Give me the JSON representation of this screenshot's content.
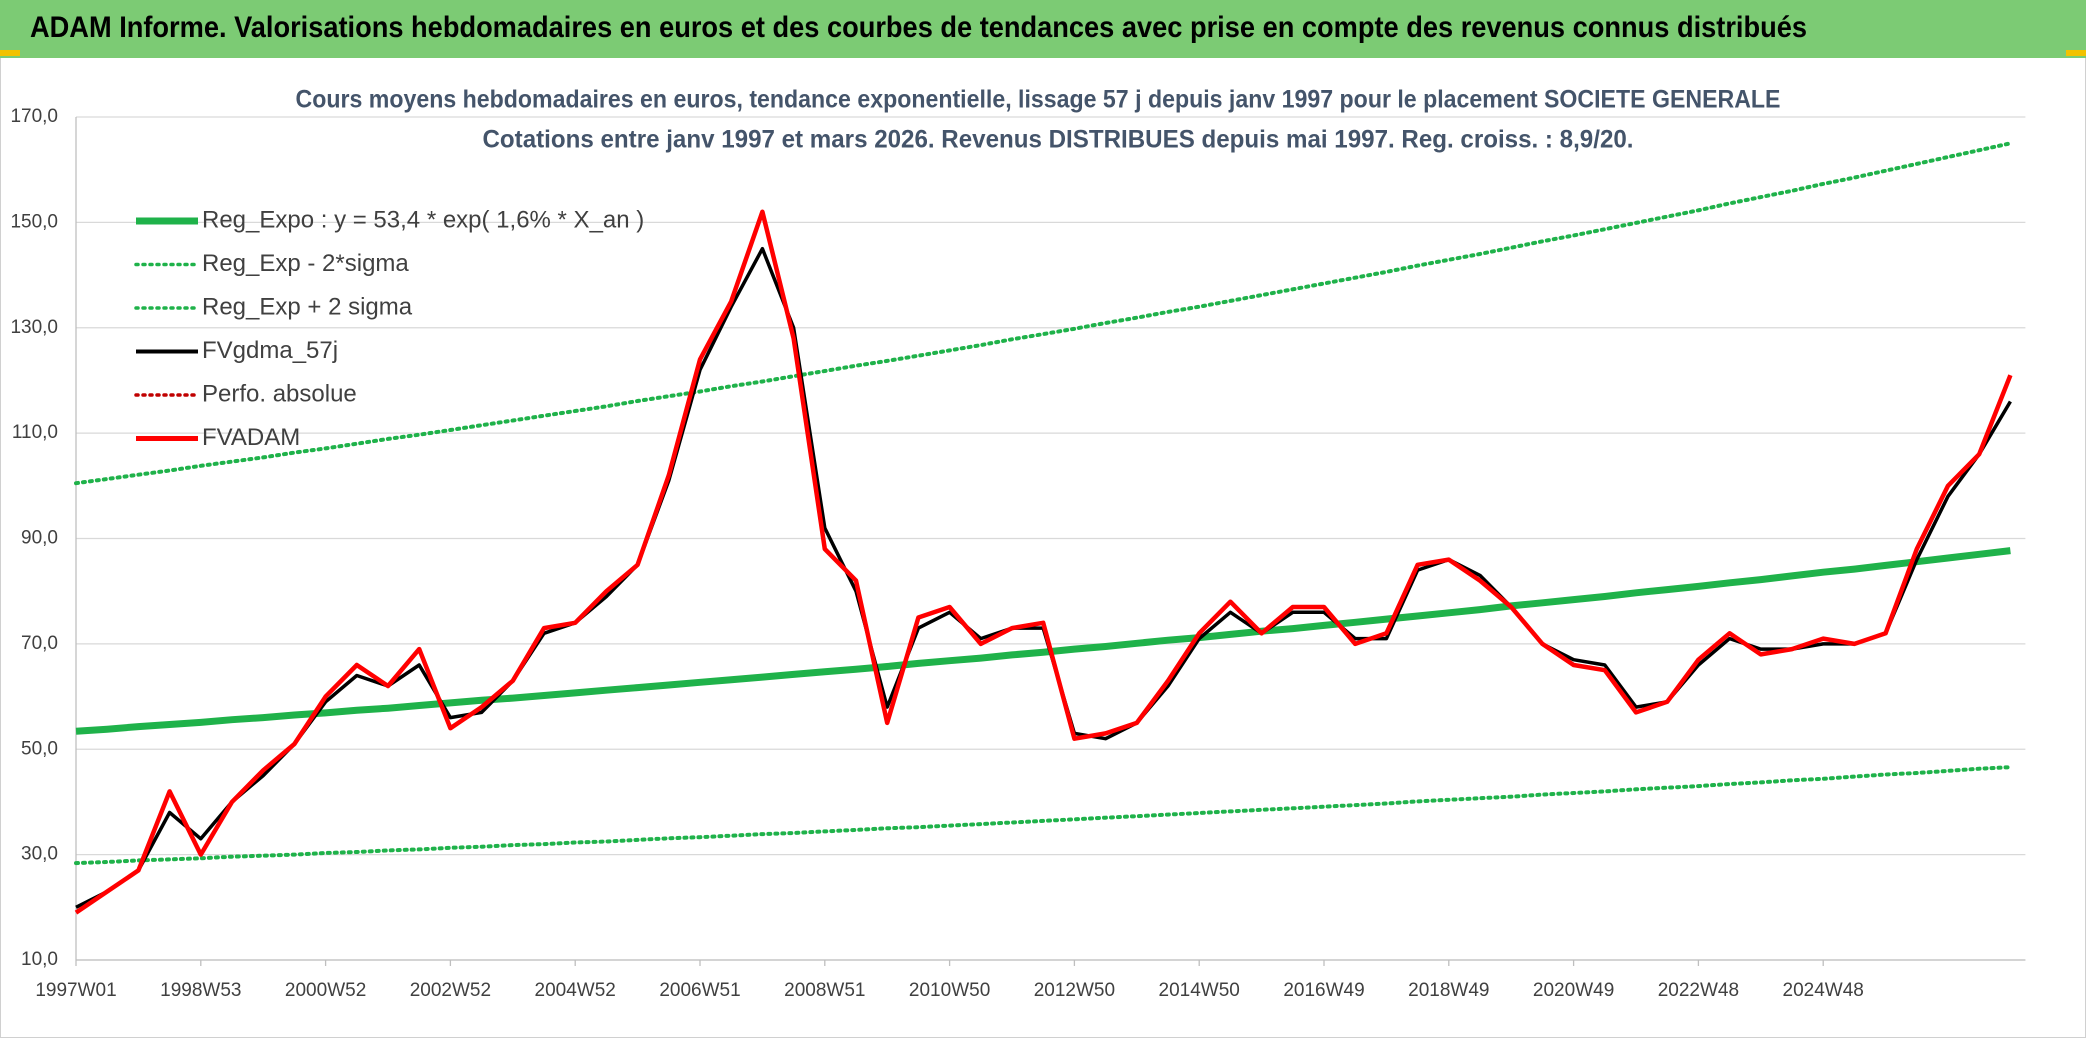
{
  "header": {
    "title": "ADAM Informe. Valorisations hebdomadaires en euros et des courbes de tendances avec prise en compte des revenus connus distribués"
  },
  "chart_data": {
    "type": "line",
    "title": "Cours moyens hebdomadaires en euros, tendance exponentielle, lissage 57 j depuis janv 1997 pour le placement SOCIETE GENERALE",
    "subtitle": "Cotations entre janv 1997 et mars 2026. Revenus DISTRIBUES depuis mai 1997. Reg. croiss. : 8,9/20.",
    "categories": [
      "1997W01",
      null,
      null,
      null,
      "1998W53",
      null,
      null,
      null,
      "2000W52",
      null,
      null,
      null,
      "2002W52",
      null,
      null,
      null,
      "2004W52",
      null,
      null,
      null,
      "2006W51",
      null,
      null,
      null,
      "2008W51",
      null,
      null,
      null,
      "2010W50",
      null,
      null,
      null,
      "2012W50",
      null,
      null,
      null,
      "2014W50",
      null,
      null,
      null,
      "2016W49",
      null,
      null,
      null,
      "2018W49",
      null,
      null,
      null,
      "2020W49",
      null,
      null,
      null,
      "2022W48",
      null,
      null,
      null,
      "2024W48",
      null,
      null,
      null,
      null,
      null,
      null
    ],
    "ylim": [
      10,
      170
    ],
    "yticks": [
      {
        "value": 10,
        "label": "10,0"
      },
      {
        "value": 30,
        "label": "30,0"
      },
      {
        "value": 50,
        "label": "50,0"
      },
      {
        "value": 70,
        "label": "70,0"
      },
      {
        "value": 90,
        "label": "90,0"
      },
      {
        "value": 110,
        "label": "110,0"
      },
      {
        "value": 130,
        "label": "130,0"
      },
      {
        "value": 150,
        "label": "150,0"
      },
      {
        "value": 170,
        "label": "170,0"
      }
    ],
    "grid": true,
    "legend": "upper left",
    "series": [
      {
        "name": "Reg_Expo : y = 53,4 * exp( 1,6% *  X_an )",
        "color": "#1fb24a",
        "dotted": false,
        "bold": true,
        "values": [
          53.4,
          53.8,
          54.3,
          54.7,
          55.1,
          55.6,
          56.0,
          56.5,
          56.9,
          57.4,
          57.8,
          58.3,
          58.8,
          59.3,
          59.7,
          60.2,
          60.7,
          61.2,
          61.7,
          62.2,
          62.7,
          63.2,
          63.7,
          64.2,
          64.7,
          65.2,
          65.7,
          66.3,
          66.8,
          67.3,
          67.9,
          68.4,
          69.0,
          69.5,
          70.1,
          70.7,
          71.2,
          71.8,
          72.4,
          72.9,
          73.5,
          74.1,
          74.7,
          75.3,
          75.9,
          76.5,
          77.2,
          77.8,
          78.4,
          79.0,
          79.7,
          80.3,
          80.9,
          81.6,
          82.2,
          82.9,
          83.6,
          84.2,
          84.9,
          85.6,
          86.3,
          87.0,
          87.7
        ]
      },
      {
        "name": "Reg_Exp - 2*sigma",
        "color": "#1fb24a",
        "dotted": true,
        "bold": false,
        "values": [
          28.4,
          28.6,
          28.9,
          29.1,
          29.3,
          29.6,
          29.8,
          30.0,
          30.3,
          30.5,
          30.8,
          31.0,
          31.3,
          31.5,
          31.8,
          32.0,
          32.3,
          32.5,
          32.8,
          33.1,
          33.3,
          33.6,
          33.9,
          34.1,
          34.4,
          34.7,
          35.0,
          35.2,
          35.5,
          35.8,
          36.1,
          36.4,
          36.7,
          37.0,
          37.3,
          37.6,
          37.9,
          38.2,
          38.5,
          38.8,
          39.1,
          39.4,
          39.7,
          40.1,
          40.4,
          40.7,
          41.0,
          41.4,
          41.7,
          42.0,
          42.4,
          42.7,
          43.0,
          43.4,
          43.7,
          44.1,
          44.4,
          44.8,
          45.2,
          45.5,
          45.9,
          46.3,
          46.6
        ]
      },
      {
        "name": "Reg_Exp + 2 sigma",
        "color": "#1fb24a",
        "dotted": true,
        "bold": false,
        "values": [
          100.5,
          101.3,
          102.1,
          102.9,
          103.8,
          104.6,
          105.4,
          106.3,
          107.1,
          108.0,
          108.9,
          109.7,
          110.6,
          111.5,
          112.4,
          113.3,
          114.2,
          115.1,
          116.1,
          117.0,
          117.9,
          118.9,
          119.8,
          120.8,
          121.8,
          122.8,
          123.7,
          124.7,
          125.7,
          126.7,
          127.8,
          128.8,
          129.8,
          130.9,
          131.9,
          133.0,
          134.0,
          135.1,
          136.2,
          137.3,
          138.4,
          139.5,
          140.6,
          141.8,
          142.9,
          144.0,
          145.2,
          146.4,
          147.5,
          148.7,
          149.9,
          151.1,
          152.3,
          153.6,
          154.8,
          156.0,
          157.3,
          158.5,
          159.8,
          161.1,
          162.4,
          163.7,
          165.0
        ]
      },
      {
        "name": "FVgdma_57j",
        "color": "#000000",
        "dotted": false,
        "bold": false,
        "values": [
          20,
          23,
          27,
          38,
          33,
          40,
          45,
          51,
          59,
          64,
          62,
          66,
          56,
          57,
          63,
          72,
          74,
          79,
          85,
          101,
          122,
          134,
          145,
          130,
          92,
          80,
          58,
          73,
          76,
          71,
          73,
          73,
          53,
          52,
          55,
          62,
          71,
          76,
          72,
          76,
          76,
          71,
          71,
          84,
          86,
          83,
          77,
          70,
          67,
          66,
          58,
          59,
          66,
          71,
          69,
          69,
          70,
          70,
          72,
          86,
          98,
          106,
          116
        ]
      },
      {
        "name": "Perfo. absolue",
        "color": "#c00000",
        "dotted": true,
        "bold": false,
        "values": [
          null,
          null,
          null,
          null,
          null,
          null,
          null,
          null,
          null,
          null,
          null,
          null,
          null,
          null,
          null,
          null,
          null,
          null,
          null,
          null,
          null,
          null,
          null,
          null,
          null,
          null,
          null,
          null,
          null,
          null,
          null,
          null,
          null,
          null,
          null,
          null,
          null,
          null,
          null,
          null,
          null,
          null,
          null,
          null,
          null,
          null,
          null,
          null,
          null,
          null,
          null,
          null,
          null,
          null,
          null,
          null,
          null,
          null,
          null,
          null,
          null,
          null,
          null
        ]
      },
      {
        "name": "FVADAM",
        "color": "#ff0000",
        "dotted": false,
        "bold": true,
        "values": [
          19,
          23,
          27,
          42,
          30,
          40,
          46,
          51,
          60,
          66,
          62,
          69,
          54,
          58,
          63,
          73,
          74,
          80,
          85,
          102,
          124,
          135,
          152,
          128,
          88,
          82,
          55,
          75,
          77,
          70,
          73,
          74,
          52,
          53,
          55,
          63,
          72,
          78,
          72,
          77,
          77,
          70,
          72,
          85,
          86,
          82,
          77,
          70,
          66,
          65,
          57,
          59,
          67,
          72,
          68,
          69,
          71,
          70,
          72,
          88,
          100,
          106,
          121
        ]
      }
    ]
  }
}
